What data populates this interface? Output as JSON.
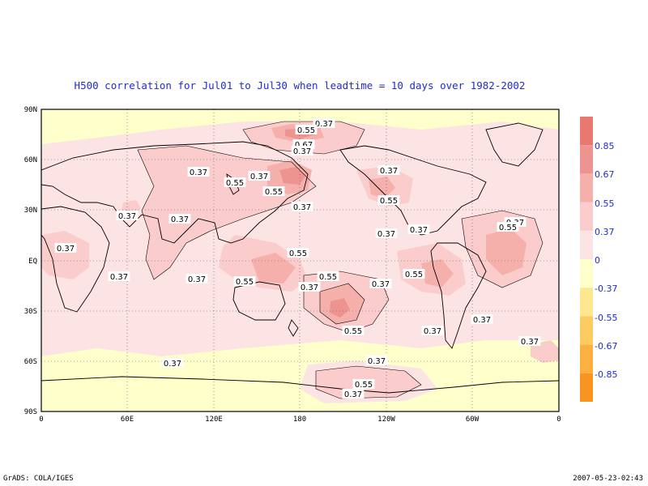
{
  "title": "H500 correlation for  Jul01 to Jul30  when leadtime =  10 days over 1982-2002",
  "lat_ticks": [
    "90N",
    "60N",
    "30N",
    "EQ",
    "30S",
    "60S",
    "90S"
  ],
  "lon_ticks": [
    "0",
    "60E",
    "120E",
    "180",
    "120W",
    "60W",
    "0"
  ],
  "colorbar": {
    "labels": [
      "0.85",
      "0.67",
      "0.55",
      "0.37",
      "0",
      "-0.37",
      "-0.55",
      "-0.67",
      "-0.85"
    ],
    "colors": [
      "#e87870",
      "#ee9490",
      "#f5b0ac",
      "#fbcccc",
      "#fde4e4",
      "#ffffcc",
      "#fde890",
      "#fdcc60",
      "#fcb040",
      "#fa9420"
    ]
  },
  "contour_labels": [
    "0.37",
    "0.55",
    "0.67"
  ],
  "footer_left": "GrADS: COLA/IGES",
  "footer_right": "2007-05-23-02:43"
}
